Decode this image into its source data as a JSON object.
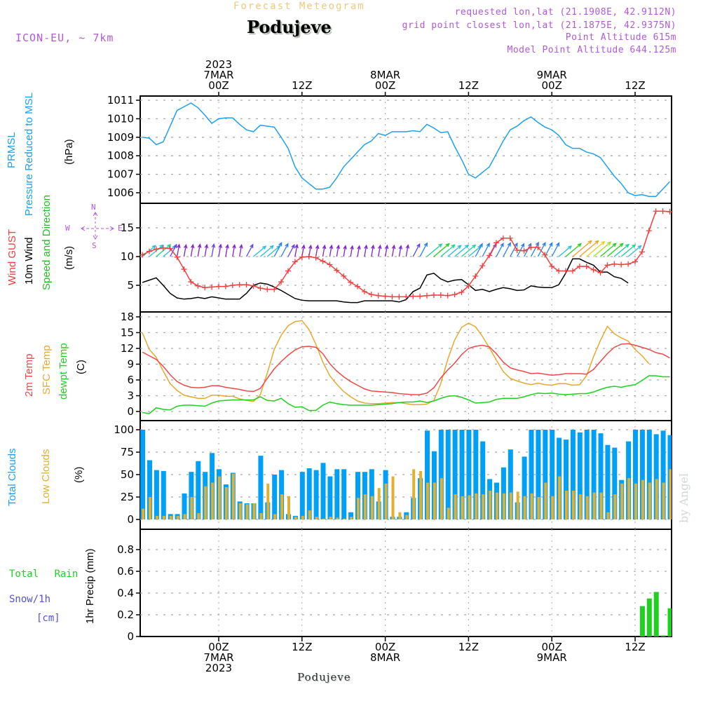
{
  "header": {
    "subtitle": "Forecast Meteogram",
    "station": "Podujeve",
    "model": "ICON-EU, ~ 7km",
    "requested": "requested lon,lat (21.1908E, 42.9112N)",
    "grid_point": "grid point closest lon,lat (21.1875E, 42.9375N)",
    "point_altitude": "Point Altitude 615m",
    "model_altitude": "Model Point Altitude 644.125m",
    "footer_station": "Podujeve",
    "watermark": "by Angel"
  },
  "time_axis": {
    "top_labels": [
      {
        "hour": 0,
        "lines": [
          "2023",
          "7MAR",
          "00Z"
        ]
      },
      {
        "hour": 12,
        "lines": [
          "12Z"
        ]
      },
      {
        "hour": 24,
        "lines": [
          "8MAR",
          "00Z"
        ]
      },
      {
        "hour": 36,
        "lines": [
          "12Z"
        ]
      },
      {
        "hour": 48,
        "lines": [
          "9MAR",
          "00Z"
        ]
      },
      {
        "hour": 60,
        "lines": [
          "12Z"
        ]
      }
    ],
    "bottom_labels": [
      {
        "hour": 0,
        "lines": [
          "00Z",
          "7MAR",
          "2023"
        ]
      },
      {
        "hour": 12,
        "lines": [
          "12Z"
        ]
      },
      {
        "hour": 24,
        "lines": [
          "00Z",
          "8MAR"
        ]
      },
      {
        "hour": 36,
        "lines": [
          "12Z"
        ]
      },
      {
        "hour": 48,
        "lines": [
          "00Z",
          "9MAR"
        ]
      },
      {
        "hour": 60,
        "lines": [
          "12Z"
        ]
      }
    ],
    "start_hour": -11,
    "end_hour": 65
  },
  "colors": {
    "pressure": "#1ea0f0",
    "gust": "#f04040",
    "wind10m": "#000000",
    "direction_label": "#20c020",
    "t2m": "#f04848",
    "tsfc": "#e8a830",
    "dewpt": "#20d020",
    "total_clouds": "#00a0f8",
    "low_clouds": "#e0b030",
    "rain": "#20d020",
    "snow": "#5050f0",
    "info": "#b05ad8"
  },
  "chart_data": [
    {
      "type": "line",
      "panel": "pressure",
      "labels": [
        "PRMSL",
        "Pressure Reduced to MSL",
        "(hPa)"
      ],
      "ylim": [
        1005.5,
        1011.2
      ],
      "yticks": [
        1006,
        1007,
        1008,
        1009,
        1010,
        1011
      ],
      "x_hours_start": -11,
      "series": [
        {
          "name": "PRMSL",
          "values": [
            1009.0,
            1008.95,
            1008.6,
            1008.75,
            1009.6,
            1010.45,
            1010.65,
            1010.85,
            1010.6,
            1010.2,
            1009.75,
            1010.0,
            1010.05,
            1010.05,
            1009.7,
            1009.4,
            1009.3,
            1009.65,
            1009.6,
            1009.55,
            1009.0,
            1008.4,
            1007.4,
            1006.8,
            1006.5,
            1006.2,
            1006.2,
            1006.3,
            1006.8,
            1007.4,
            1007.8,
            1008.2,
            1008.6,
            1008.8,
            1009.2,
            1009.1,
            1009.3,
            1009.3,
            1009.3,
            1009.35,
            1009.3,
            1009.7,
            1009.5,
            1009.25,
            1009.3,
            1008.5,
            1007.8,
            1007.0,
            1006.8,
            1007.1,
            1007.4,
            1008.1,
            1008.8,
            1009.4,
            1009.6,
            1009.9,
            1010.1,
            1009.8,
            1009.55,
            1009.4,
            1009.1,
            1008.6,
            1008.4,
            1008.4,
            1008.2,
            1008.1,
            1007.9,
            1007.4,
            1006.9,
            1006.5,
            1006.0,
            1005.85,
            1005.9,
            1005.8,
            1005.8,
            1006.2,
            1006.6
          ]
        }
      ]
    },
    {
      "type": "line",
      "panel": "wind",
      "labels": [
        "Wind GUST",
        "10m Wind",
        "Speed and Direction",
        "(m/s)"
      ],
      "compass": {
        "n": "N",
        "s": "S",
        "w": "W",
        "e": "E"
      },
      "ylim": [
        -0.4,
        18.5
      ],
      "yticks": [
        5,
        10,
        15
      ],
      "x_hours_start": -11,
      "series": [
        {
          "name": "Wind GUST",
          "marker": "+",
          "values": [
            10.3,
            10.9,
            11.3,
            11.5,
            11.4,
            9.9,
            7.8,
            5.6,
            4.9,
            4.6,
            4.7,
            4.8,
            4.8,
            5.0,
            5.1,
            5.1,
            4.9,
            4.5,
            4.3,
            4.3,
            5.6,
            7.5,
            9.1,
            9.9,
            10.0,
            9.8,
            9.2,
            8.6,
            7.6,
            6.6,
            5.5,
            4.8,
            3.9,
            3.4,
            3.2,
            3.1,
            3.0,
            3.0,
            3.0,
            3.1,
            3.1,
            3.2,
            3.3,
            3.3,
            3.2,
            3.4,
            3.8,
            4.9,
            6.6,
            8.4,
            10.2,
            12.4,
            13.2,
            13.2,
            11.1,
            11.0,
            11.6,
            11.6,
            10.3,
            8.3,
            7.5,
            7.5,
            7.5,
            8.3,
            8.3,
            7.7,
            7.2,
            8.5,
            8.7,
            8.6,
            8.7,
            9.1,
            10.8,
            14.5,
            17.9,
            17.9,
            17.8,
            16.4,
            15.8,
            13.1,
            12.5,
            11.6,
            10.7,
            9.3
          ]
        },
        {
          "name": "10m Wind",
          "values": [
            5.5,
            5.9,
            6.3,
            5.0,
            3.6,
            2.8,
            2.6,
            2.7,
            2.9,
            2.7,
            3.0,
            2.8,
            2.6,
            2.6,
            2.6,
            3.6,
            5.0,
            5.4,
            5.2,
            4.7,
            4.1,
            3.4,
            2.7,
            2.4,
            2.3,
            2.3,
            2.3,
            2.3,
            2.3,
            2.1,
            2.0,
            2.0,
            2.3,
            2.3,
            2.3,
            2.3,
            2.3,
            2.1,
            2.5,
            3.9,
            4.5,
            6.8,
            7.1,
            6.1,
            5.6,
            5.9,
            6.0,
            5.1,
            4.1,
            4.3,
            3.9,
            4.3,
            4.6,
            4.4,
            4.1,
            4.2,
            4.9,
            4.7,
            4.6,
            4.6,
            5.1,
            7.1,
            9.6,
            9.6,
            9.0,
            8.5,
            7.3,
            7.3,
            6.5,
            6.2,
            5.4
          ]
        },
        {
          "name": "Wind direction (arrows, colored by speed)",
          "values": []
        }
      ]
    },
    {
      "type": "line",
      "panel": "temperature",
      "labels": [
        "2m Temp",
        "SFC Temp",
        "dewpt Temp",
        "(C)"
      ],
      "ylim": [
        -1.5,
        19
      ],
      "yticks": [
        0,
        3,
        6,
        9,
        12,
        15,
        18
      ],
      "x_hours_start": -11,
      "series": [
        {
          "name": "2m Temp",
          "values": [
            11.3,
            10.6,
            9.9,
            8.6,
            7.0,
            5.7,
            5.0,
            4.6,
            4.5,
            4.6,
            4.9,
            4.9,
            4.6,
            4.4,
            4.2,
            3.9,
            3.8,
            4.4,
            6.3,
            8.1,
            9.5,
            10.7,
            11.7,
            12.3,
            12.4,
            12.2,
            11.0,
            9.1,
            7.7,
            6.6,
            5.7,
            5.0,
            4.3,
            3.9,
            3.8,
            3.7,
            3.6,
            3.4,
            3.3,
            3.2,
            3.2,
            3.5,
            4.5,
            6.4,
            7.9,
            9.2,
            10.8,
            12.0,
            12.4,
            12.6,
            12.3,
            11.0,
            9.4,
            8.3,
            7.9,
            7.6,
            7.2,
            7.3,
            7.1,
            6.9,
            7.0,
            7.2,
            7.2,
            7.2,
            7.1,
            8.0,
            9.5,
            11.0,
            12.2,
            12.8,
            12.9,
            12.6,
            12.2,
            11.8,
            11.2,
            10.9,
            10.2
          ]
        },
        {
          "name": "SFC Temp",
          "values": [
            15.0,
            11.8,
            10.3,
            7.7,
            5.3,
            4.0,
            3.1,
            2.8,
            2.5,
            2.5,
            3.1,
            3.1,
            2.9,
            2.9,
            2.4,
            2.1,
            1.9,
            3.2,
            7.3,
            11.8,
            14.5,
            16.3,
            17.1,
            17.3,
            15.6,
            12.8,
            9.4,
            6.8,
            5.2,
            3.8,
            2.8,
            2.0,
            1.6,
            1.5,
            1.5,
            1.6,
            1.7,
            1.7,
            1.5,
            1.3,
            1.3,
            1.4,
            2.1,
            5.3,
            9.9,
            13.6,
            16.0,
            16.8,
            16.1,
            14.3,
            12.1,
            9.8,
            7.6,
            6.3,
            5.8,
            5.4,
            5.1,
            5.4,
            5.1,
            5.0,
            5.3,
            5.3,
            5.0,
            5.1,
            6.8,
            10.4,
            13.5,
            16.2,
            14.8,
            14.0,
            13.4,
            11.8,
            10.6,
            9.1
          ]
        },
        {
          "name": "dewpt Temp",
          "values": [
            -0.2,
            -0.4,
            0.7,
            0.4,
            0.3,
            1.0,
            1.2,
            1.2,
            1.1,
            1.0,
            1.6,
            2.0,
            2.1,
            2.2,
            2.2,
            2.2,
            2.2,
            2.8,
            2.1,
            2.0,
            2.5,
            1.5,
            0.8,
            0.9,
            0.2,
            0.2,
            1.2,
            1.8,
            1.5,
            1.3,
            1.2,
            1.2,
            1.2,
            1.2,
            1.3,
            1.4,
            1.5,
            1.7,
            1.8,
            1.8,
            2.0,
            1.7,
            2.0,
            2.5,
            2.9,
            3.0,
            2.7,
            2.2,
            1.6,
            1.7,
            1.8,
            2.3,
            2.5,
            2.5,
            2.5,
            2.8,
            3.2,
            3.5,
            3.4,
            3.5,
            3.3,
            3.2,
            3.3,
            3.4,
            3.4,
            3.7,
            4.2,
            4.6,
            4.8,
            4.6,
            4.9,
            5.1,
            5.9,
            6.8,
            6.8,
            6.6,
            6.6,
            6.7
          ]
        }
      ]
    },
    {
      "type": "bar",
      "panel": "clouds",
      "labels": [
        "Total Clouds",
        "Low Clouds",
        "(%)"
      ],
      "ylim": [
        0,
        100
      ],
      "yticks": [
        0,
        25,
        50,
        75,
        100
      ],
      "x_hours_start": -11,
      "series": [
        {
          "name": "Total Clouds",
          "values": [
            100,
            66,
            55,
            54,
            6,
            6,
            29,
            53,
            65,
            53,
            74,
            56,
            39,
            52,
            20,
            18,
            18,
            71,
            19,
            50,
            55,
            6,
            4,
            53,
            57,
            55,
            63,
            48,
            56,
            56,
            8,
            53,
            53,
            56,
            20,
            55,
            3,
            3,
            8,
            24,
            46,
            99,
            76,
            100,
            100,
            100,
            100,
            100,
            100,
            87,
            45,
            41,
            58,
            78,
            19,
            70,
            100,
            100,
            100,
            100,
            91,
            89,
            100,
            97,
            100,
            100,
            96,
            83,
            80,
            44,
            87,
            100,
            100,
            100,
            95,
            99,
            94,
            96,
            94,
            100,
            100
          ]
        },
        {
          "name": "Low Clouds",
          "values": [
            12,
            25,
            4,
            4,
            4,
            4,
            6,
            25,
            7,
            37,
            41,
            48,
            36,
            51,
            18,
            17,
            18,
            7,
            40,
            6,
            28,
            26,
            3,
            4,
            10,
            3,
            1,
            3,
            2,
            1,
            3,
            24,
            28,
            26,
            35,
            40,
            48,
            8,
            5,
            56,
            54,
            41,
            41,
            46,
            13,
            28,
            26,
            27,
            29,
            28,
            32,
            30,
            29,
            30,
            31,
            26,
            29,
            25,
            41,
            26,
            48,
            32,
            32,
            28,
            26,
            30,
            30,
            8,
            28,
            40,
            46,
            40,
            44,
            41,
            45,
            41,
            56,
            50,
            55,
            41
          ]
        }
      ]
    },
    {
      "type": "bar",
      "panel": "precip",
      "labels": [
        "Total Rain",
        "Snow/1h",
        "[cm]",
        "1hr Precip (mm)"
      ],
      "ylim": [
        0,
        1.0
      ],
      "yticks": [
        0,
        0.2,
        0.4,
        0.6,
        0.8
      ],
      "x_hours_start": -11,
      "series": [
        {
          "name": "Total Rain",
          "values": [
            0,
            0,
            0,
            0,
            0,
            0,
            0,
            0,
            0,
            0,
            0,
            0,
            0,
            0,
            0,
            0,
            0,
            0,
            0,
            0,
            0,
            0,
            0,
            0,
            0,
            0,
            0,
            0,
            0,
            0,
            0,
            0,
            0,
            0,
            0,
            0,
            0,
            0,
            0,
            0,
            0,
            0,
            0,
            0,
            0,
            0,
            0,
            0,
            0,
            0,
            0,
            0,
            0,
            0,
            0,
            0,
            0,
            0,
            0,
            0,
            0,
            0,
            0,
            0,
            0,
            0,
            0,
            0,
            0,
            0,
            0,
            0,
            0.28,
            0.35,
            0.41,
            0.01,
            0.26
          ]
        },
        {
          "name": "Snow/1h",
          "values": []
        }
      ]
    }
  ]
}
